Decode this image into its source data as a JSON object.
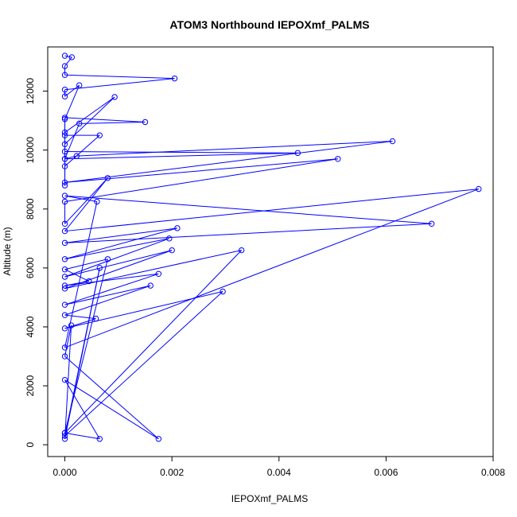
{
  "chart_data": {
    "type": "line",
    "title": "ATOM3 Northbound IEPOXmf_PALMS",
    "xlabel": "IEPOXmf_PALMS",
    "ylabel": "Altitude (m)",
    "xlim": [
      -0.00032,
      0.008
    ],
    "ylim": [
      -400,
      13500
    ],
    "x_ticks": [
      0.0,
      0.002,
      0.004,
      0.006,
      0.008
    ],
    "x_tick_labels": [
      "0.000",
      "0.002",
      "0.004",
      "0.006",
      "0.008"
    ],
    "y_ticks": [
      0,
      2000,
      4000,
      6000,
      8000,
      10000,
      12000
    ],
    "y_tick_labels": [
      "0",
      "2000",
      "4000",
      "6000",
      "8000",
      "10000",
      "12000"
    ],
    "grid": false,
    "legend": "none",
    "series_color": "#0000ff",
    "series": [
      {
        "x": [
          0.0,
          0.00013,
          0.0,
          0.0,
          0.00205,
          0.0,
          0.0,
          0.00027,
          0.0,
          0.0,
          0.00093,
          0.0,
          0.0,
          0.0015,
          0.00027,
          0.0,
          0.0,
          0.00065,
          0.0,
          0.0,
          0.0,
          0.00435,
          0.0,
          0.00022,
          0.00612,
          0.0,
          0.0051,
          0.0,
          0.0,
          0.0008,
          0.0,
          0.00773,
          0.0,
          0.0006,
          0.0,
          0.00685,
          0.0,
          0.0021,
          0.0,
          0.00195,
          0.0,
          0.002,
          0.0,
          0.0033,
          0.0,
          0.0008,
          0.0,
          0.00045,
          0.0,
          0.00175,
          0.0,
          0.0016,
          0.0,
          0.00058,
          0.0,
          0.00295,
          0.0,
          0.00065,
          0.0,
          0.00012,
          0.0,
          0.00175,
          0.0,
          0.00065,
          0.0
        ],
        "y": [
          13200,
          13150,
          12850,
          12550,
          12430,
          12050,
          11820,
          12200,
          11050,
          10600,
          11800,
          10200,
          11100,
          10950,
          10900,
          9700,
          10500,
          10500,
          9450,
          8800,
          9950,
          9900,
          9700,
          9800,
          10300,
          8900,
          9700,
          8250,
          7500,
          9050,
          7250,
          8680,
          3300,
          8250,
          8450,
          7500,
          6850,
          7350,
          6300,
          7000,
          5700,
          6600,
          5300,
          6600,
          400,
          6300,
          5950,
          5550,
          5400,
          5800,
          4750,
          5400,
          4400,
          4280,
          3950,
          5200,
          300,
          6000,
          200,
          4050,
          3000,
          200,
          2200,
          200,
          400
        ]
      }
    ]
  }
}
